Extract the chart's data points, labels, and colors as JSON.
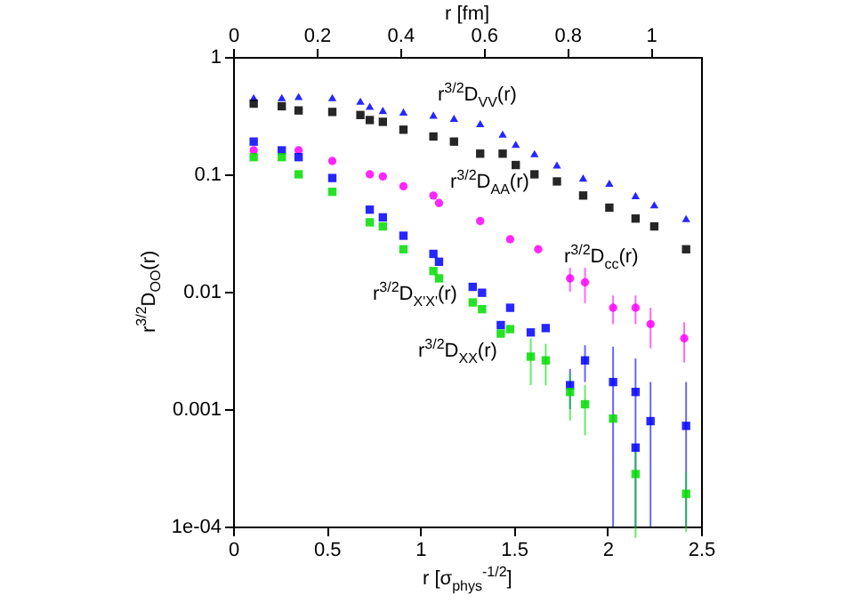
{
  "chart_data": {
    "type": "scatter",
    "xlabel": "r  [σ$_{phys}$$^{-1/2}$]",
    "ylabel": "r$^{3/2}$D$_{OO}$(r)",
    "x2label": "r  [fm]",
    "xlim": [
      0,
      2.5
    ],
    "xticks": [
      0,
      0.5,
      1,
      1.5,
      2,
      2.5
    ],
    "x2lim": [
      0,
      1.12
    ],
    "x2ticks": [
      0,
      0.2,
      0.4,
      0.6,
      0.8,
      1
    ],
    "ylim": [
      0.0001,
      1
    ],
    "yticks": [
      1,
      0.1,
      0.01,
      0.001,
      {
        "value": 0.0001,
        "label": "1e-04"
      }
    ],
    "log": "y",
    "grid": false,
    "series": [
      {
        "color": "#0000ff",
        "marker": "triangle",
        "x": [
          0.11,
          0.26,
          0.35,
          0.53,
          0.68,
          0.73,
          0.8,
          0.91,
          1.07,
          1.18,
          1.32,
          1.44,
          1.51,
          1.61,
          1.73,
          1.87,
          2.01,
          2.15,
          2.25,
          2.42
        ],
        "values": [
          0.45,
          0.45,
          0.46,
          0.45,
          0.42,
          0.38,
          0.35,
          0.34,
          0.32,
          0.3,
          0.27,
          0.22,
          0.18,
          0.15,
          0.12,
          0.093,
          0.084,
          0.066,
          0.055,
          0.042
        ]
      },
      {
        "color": "#000000",
        "marker": "square",
        "x": [
          0.11,
          0.26,
          0.35,
          0.53,
          0.68,
          0.73,
          0.8,
          0.91,
          1.07,
          1.18,
          1.32,
          1.44,
          1.51,
          1.61,
          1.73,
          1.87,
          2.01,
          2.15,
          2.25,
          2.42
        ],
        "values": [
          0.4,
          0.38,
          0.35,
          0.34,
          0.32,
          0.29,
          0.28,
          0.24,
          0.21,
          0.19,
          0.15,
          0.15,
          0.12,
          0.1,
          0.087,
          0.066,
          0.052,
          0.042,
          0.036,
          0.023
        ]
      },
      {
        "color": "#ff00ff",
        "marker": "circle",
        "x": [
          0.11,
          0.35,
          0.53,
          0.73,
          0.8,
          0.91,
          1.07,
          1.1,
          1.32,
          1.48,
          1.63,
          1.8,
          1.88,
          2.03,
          2.15,
          2.23,
          2.41
        ],
        "values": [
          0.16,
          0.16,
          0.13,
          0.1,
          0.096,
          0.079,
          0.066,
          0.057,
          0.04,
          0.028,
          0.023,
          0.013,
          0.012,
          0.0073,
          0.0073,
          0.0053,
          0.004
        ],
        "errors": [
          null,
          null,
          null,
          null,
          null,
          null,
          null,
          null,
          null,
          null,
          null,
          0.003,
          0.004,
          0.002,
          0.002,
          0.002,
          0.0015
        ]
      },
      {
        "color": "#0000ff",
        "marker": "square",
        "x": [
          0.11,
          0.26,
          0.35,
          0.53,
          0.73,
          0.8,
          0.91,
          1.07,
          1.1,
          1.28,
          1.33,
          1.43,
          1.48,
          1.59,
          1.67,
          1.8,
          1.88,
          2.03,
          2.15,
          2.15,
          2.23,
          2.42
        ],
        "values": [
          0.19,
          0.16,
          0.14,
          0.093,
          0.05,
          0.043,
          0.03,
          0.021,
          0.018,
          0.011,
          0.0098,
          0.0052,
          0.0073,
          0.0045,
          0.0049,
          0.0016,
          0.0026,
          0.0017,
          0.0014,
          0.00047,
          0.00079,
          0.00072
        ],
        "errors": [
          null,
          null,
          null,
          null,
          null,
          null,
          null,
          null,
          null,
          null,
          null,
          null,
          null,
          null,
          null,
          0.0006,
          0.0009,
          [
            0.0001,
            0.0034
          ],
          [
            0.0001,
            0.0027
          ],
          null,
          [
            0.0001,
            0.0017
          ],
          [
            0.0001,
            0.0017
          ]
        ]
      },
      {
        "color": "#00dd00",
        "marker": "square",
        "x": [
          0.11,
          0.26,
          0.35,
          0.53,
          0.73,
          0.8,
          0.91,
          1.07,
          1.1,
          1.28,
          1.33,
          1.43,
          1.48,
          1.59,
          1.67,
          1.8,
          1.88,
          2.03,
          2.15,
          2.42
        ],
        "values": [
          0.14,
          0.14,
          0.1,
          0.071,
          0.039,
          0.036,
          0.023,
          0.015,
          0.013,
          0.0081,
          0.0071,
          0.0044,
          0.0048,
          0.0028,
          0.0026,
          0.0014,
          0.0011,
          0.00083,
          0.00028,
          0.00019
        ],
        "errors": [
          null,
          null,
          null,
          null,
          null,
          null,
          null,
          null,
          null,
          null,
          null,
          null,
          null,
          0.0012,
          0.001,
          0.0006,
          0.0005,
          null,
          0.0002,
          0.0001
        ]
      }
    ],
    "annotations": [
      "r$^{3/2}$D$_{VV}$(r)",
      "r$^{3/2}$D$_{AA}$(r)",
      "r$^{3/2}$D$_{cc}$(r)",
      "r$^{3/2}$D$_{X'X'}$(r)",
      "r$^{3/2}$D$_{XX}$(r)"
    ]
  }
}
